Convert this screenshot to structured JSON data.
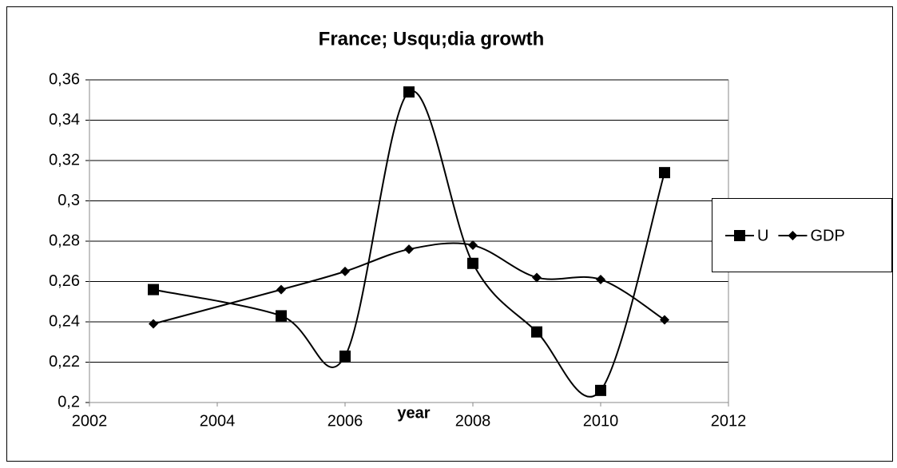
{
  "chart_data": {
    "type": "line",
    "title": "France; Usqu;dia growth",
    "x_label": "year",
    "x": [
      2003,
      2005,
      2006,
      2007,
      2008,
      2009,
      2010,
      2011
    ],
    "series": [
      {
        "name": "U",
        "color": "#000000",
        "marker": "square",
        "values": [
          0.256,
          0.243,
          0.223,
          0.354,
          0.269,
          0.235,
          0.206,
          0.314
        ]
      },
      {
        "name": "GDP",
        "color": "#000000",
        "marker": "diamond",
        "values": [
          0.239,
          0.256,
          0.265,
          0.276,
          0.278,
          0.262,
          0.261,
          0.241
        ]
      }
    ],
    "xlim": [
      2002,
      2012
    ],
    "xticks": [
      2002,
      2004,
      2006,
      2008,
      2010,
      2012
    ],
    "ylim": [
      0.2,
      0.36
    ],
    "yticks": [
      {
        "value": 0.2,
        "label": "0,2"
      },
      {
        "value": 0.22,
        "label": "0,22"
      },
      {
        "value": 0.24,
        "label": "0,24"
      },
      {
        "value": 0.26,
        "label": "0,26"
      },
      {
        "value": 0.28,
        "label": "0,28"
      },
      {
        "value": 0.3,
        "label": "0,3"
      },
      {
        "value": 0.32,
        "label": "0,32"
      },
      {
        "value": 0.34,
        "label": "0,34"
      },
      {
        "value": 0.36,
        "label": "0,36"
      }
    ],
    "grid": true,
    "smooth": true,
    "legend": "right"
  }
}
